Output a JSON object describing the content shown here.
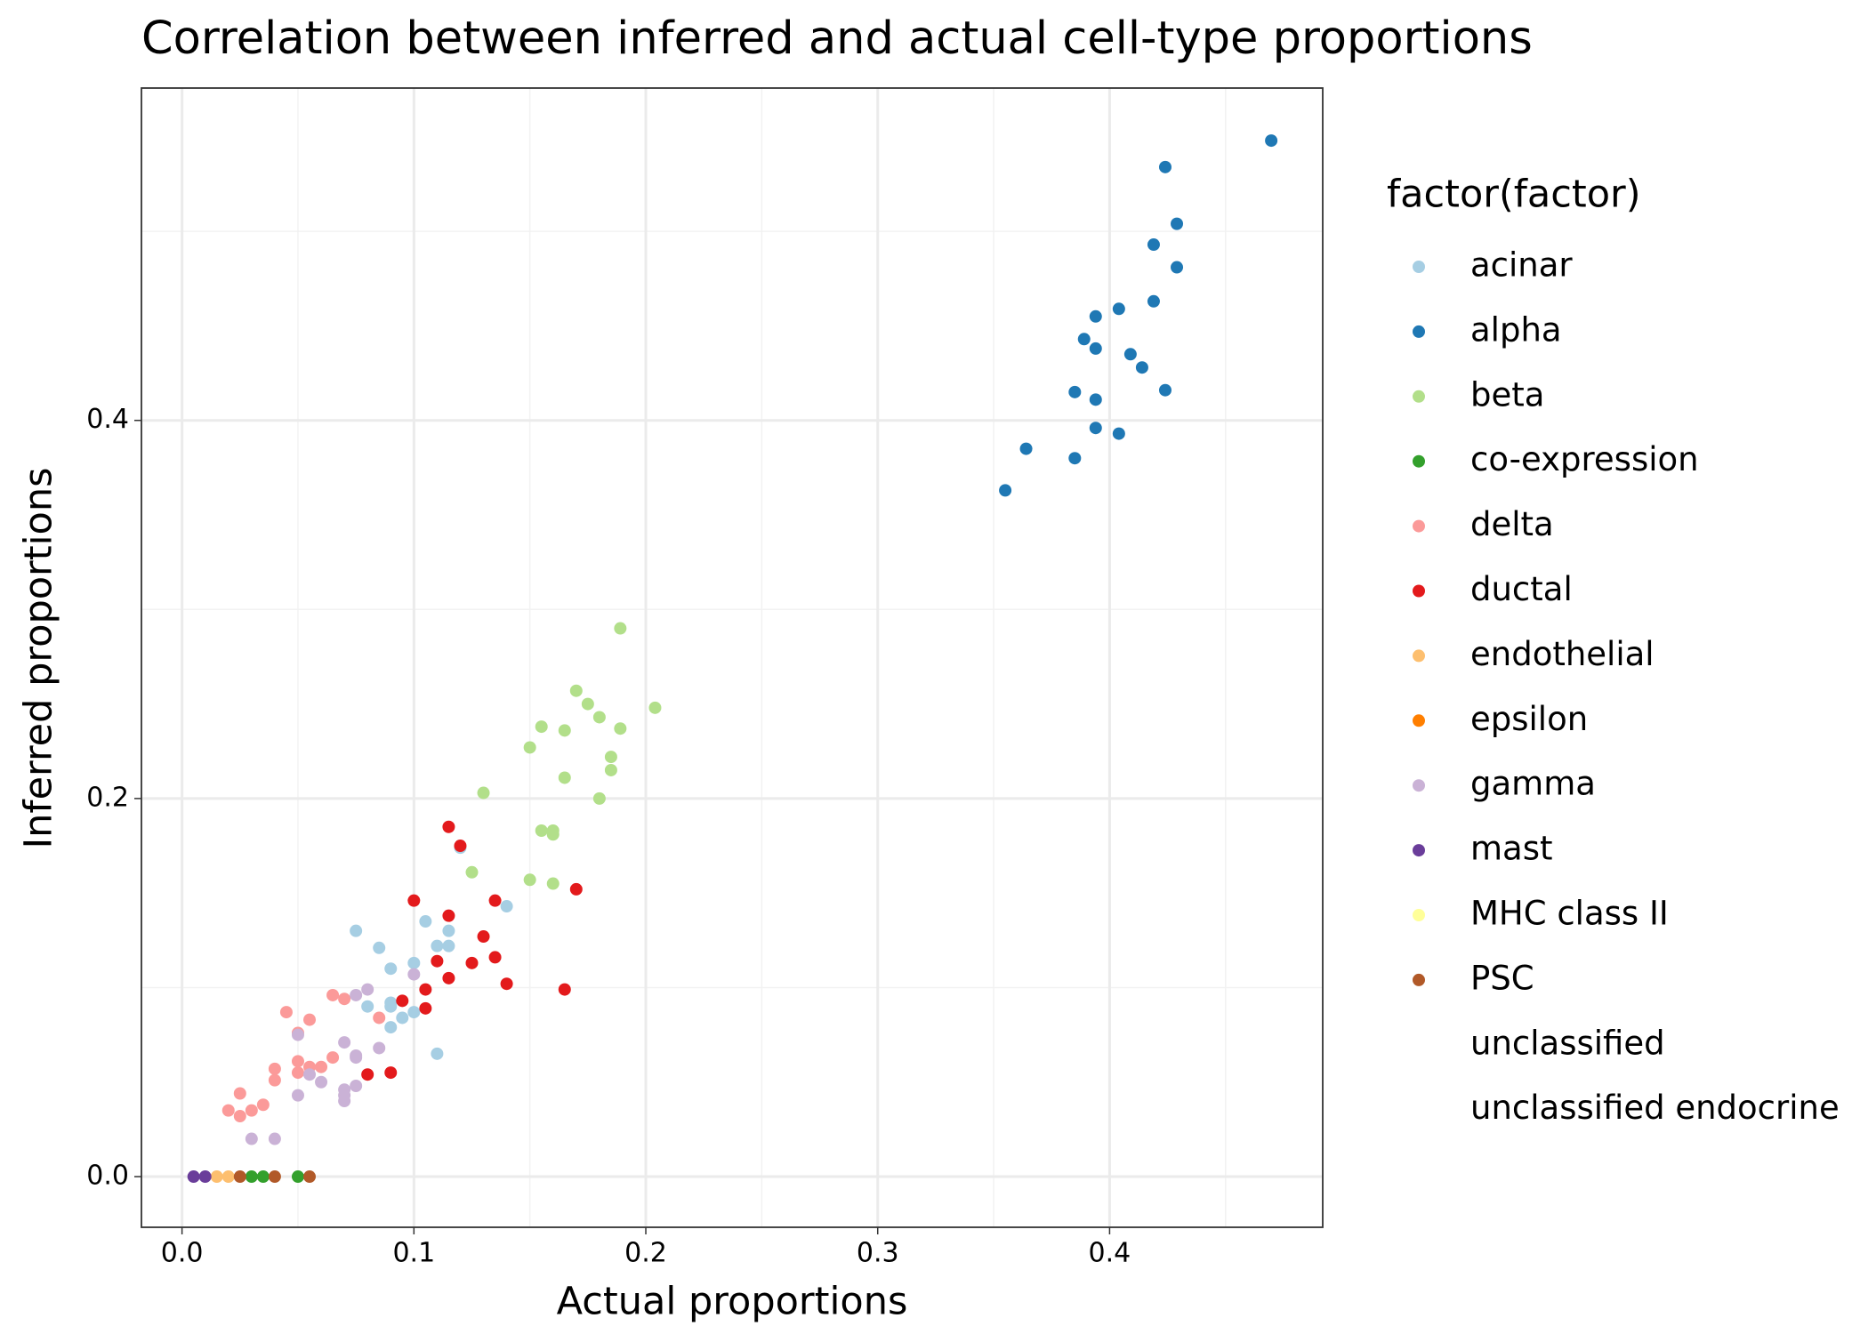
{
  "chart_data": {
    "type": "scatter",
    "title": "Correlation between inferred and actual cell-type proportions",
    "x_label": "Actual proportions",
    "y_label": "Inferred proportions",
    "legend_title": "factor(factor)",
    "legend": "right",
    "grid": true,
    "xlim": [
      -0.0175,
      0.4919
    ],
    "ylim": [
      -0.0268,
      0.5758
    ],
    "xticks": [
      {
        "value": 0,
        "label": "0.0"
      },
      0.1,
      0.2,
      0.3,
      0.4
    ],
    "yticks": [
      {
        "value": 0,
        "label": "0.0"
      },
      0.2,
      0.4
    ],
    "xminor": [
      0.05,
      0.15,
      0.25,
      0.35,
      0.45
    ],
    "yminor": [
      0.1,
      0.3,
      0.5
    ],
    "series": [
      {
        "name": "acinar",
        "color": "#a6cee3",
        "x": [
          0.12,
          0.14,
          0.075,
          0.105,
          0.115,
          0.085,
          0.11,
          0.115,
          0.1,
          0.09,
          0.08,
          0.09,
          0.09,
          0.1,
          0.095,
          0.09,
          0.11
        ],
        "values": [
          0.174,
          0.143,
          0.13,
          0.135,
          0.13,
          0.121,
          0.122,
          0.122,
          0.113,
          0.11,
          0.09,
          0.09,
          0.092,
          0.087,
          0.084,
          0.079,
          0.065
        ]
      },
      {
        "name": "alpha",
        "color": "#1f78b4",
        "x": [
          0.4697,
          0.424,
          0.429,
          0.419,
          0.429,
          0.419,
          0.404,
          0.394,
          0.389,
          0.394,
          0.409,
          0.414,
          0.385,
          0.424,
          0.394,
          0.394,
          0.404,
          0.364,
          0.385,
          0.355
        ],
        "values": [
          0.548,
          0.534,
          0.504,
          0.493,
          0.481,
          0.463,
          0.459,
          0.455,
          0.443,
          0.438,
          0.435,
          0.428,
          0.415,
          0.416,
          0.411,
          0.396,
          0.393,
          0.385,
          0.38,
          0.363
        ]
      },
      {
        "name": "beta",
        "color": "#b2df8a",
        "x": [
          0.189,
          0.17,
          0.175,
          0.204,
          0.18,
          0.155,
          0.165,
          0.189,
          0.15,
          0.185,
          0.185,
          0.165,
          0.13,
          0.18,
          0.155,
          0.16,
          0.16,
          0.125,
          0.15,
          0.16
        ],
        "values": [
          0.29,
          0.257,
          0.25,
          0.248,
          0.243,
          0.238,
          0.236,
          0.237,
          0.227,
          0.222,
          0.215,
          0.211,
          0.203,
          0.2,
          0.183,
          0.183,
          0.181,
          0.161,
          0.157,
          0.155
        ]
      },
      {
        "name": "co-expression",
        "color": "#33a02c",
        "x": [
          0.03,
          0.035,
          0.05
        ],
        "values": [
          0,
          0,
          0
        ]
      },
      {
        "name": "delta",
        "color": "#fb9a99",
        "x": [
          0.045,
          0.065,
          0.07,
          0.055,
          0.085,
          0.05,
          0.065,
          0.05,
          0.05,
          0.055,
          0.06,
          0.04,
          0.04,
          0.025,
          0.035,
          0.02,
          0.03,
          0.025
        ],
        "values": [
          0.087,
          0.096,
          0.094,
          0.083,
          0.084,
          0.076,
          0.063,
          0.061,
          0.055,
          0.058,
          0.058,
          0.057,
          0.051,
          0.044,
          0.038,
          0.035,
          0.035,
          0.032
        ]
      },
      {
        "name": "ductal",
        "color": "#e31a1c",
        "x": [
          0.115,
          0.12,
          0.1,
          0.135,
          0.17,
          0.115,
          0.13,
          0.135,
          0.11,
          0.125,
          0.115,
          0.14,
          0.105,
          0.165,
          0.095,
          0.105,
          0.09,
          0.08
        ],
        "values": [
          0.185,
          0.175,
          0.146,
          0.146,
          0.152,
          0.138,
          0.127,
          0.116,
          0.114,
          0.113,
          0.105,
          0.102,
          0.099,
          0.099,
          0.093,
          0.089,
          0.055,
          0.054
        ]
      },
      {
        "name": "endothelial",
        "color": "#fdbf6f",
        "x": [
          0.015,
          0.02
        ],
        "values": [
          0,
          0
        ]
      },
      {
        "name": "epsilon",
        "color": "#ff7f00",
        "x": [],
        "values": []
      },
      {
        "name": "gamma",
        "color": "#cab2d6",
        "x": [
          0.075,
          0.08,
          0.1,
          0.05,
          0.07,
          0.085,
          0.075,
          0.075,
          0.055,
          0.06,
          0.075,
          0.07,
          0.07,
          0.05,
          0.07,
          0.03,
          0.04
        ],
        "values": [
          0.096,
          0.099,
          0.107,
          0.075,
          0.071,
          0.068,
          0.064,
          0.063,
          0.054,
          0.05,
          0.048,
          0.046,
          0.043,
          0.043,
          0.04,
          0.02,
          0.02
        ]
      },
      {
        "name": "mast",
        "color": "#6a3d9a",
        "x": [
          0.005,
          0.01
        ],
        "values": [
          0,
          0
        ]
      },
      {
        "name": "MHC class II",
        "color": "#ffff99",
        "x": [],
        "values": []
      },
      {
        "name": "PSC",
        "color": "#b15928",
        "x": [
          0.025,
          0.04,
          0.055
        ],
        "values": [
          0,
          0,
          0
        ]
      },
      {
        "name": "unclassified",
        "color": null,
        "x": [],
        "values": []
      },
      {
        "name": "unclassified endocrine",
        "color": null,
        "x": [],
        "values": []
      }
    ]
  }
}
